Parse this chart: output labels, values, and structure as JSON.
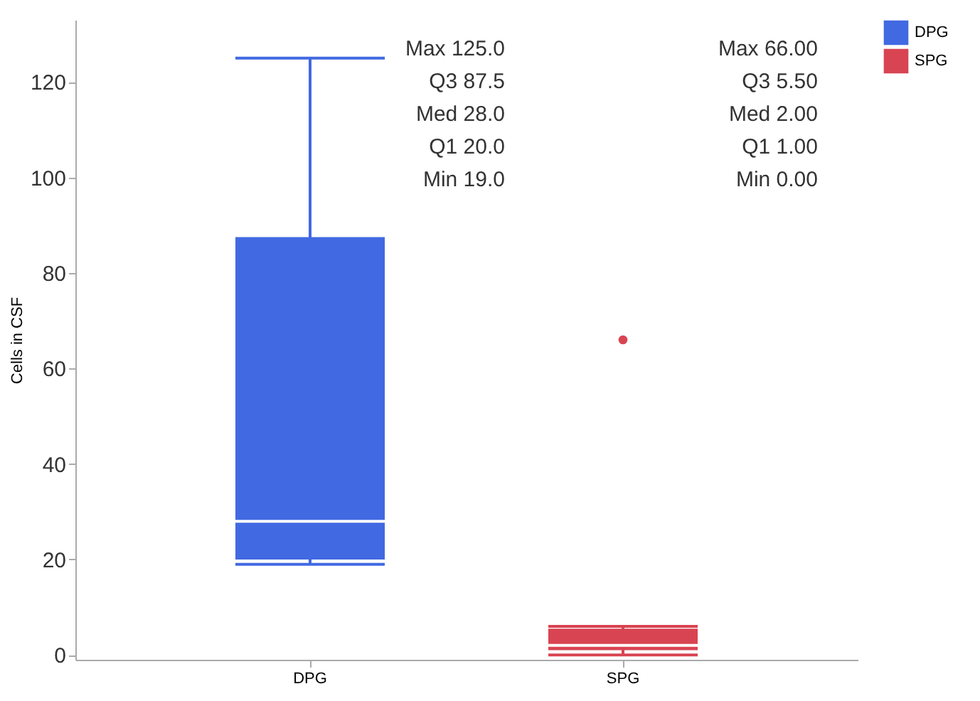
{
  "chart_data": {
    "type": "box",
    "ylabel": "Cells in CSF",
    "categories": [
      "DPG",
      "SPG"
    ],
    "series": [
      {
        "name": "DPG",
        "color": "#4169e1",
        "boxes": [
          {
            "low": 19,
            "q1": 20,
            "median": 28,
            "q3": 87.5,
            "high": 125
          },
          null
        ]
      },
      {
        "name": "SPG",
        "color": "#d94452",
        "boxes": [
          null,
          {
            "low": 0,
            "q1": 1,
            "median": 2,
            "q3": 5.5,
            "high": 6,
            "outliers": [
              66
            ]
          }
        ]
      }
    ],
    "ylim": [
      -1,
      133
    ],
    "yticks": [
      0,
      20,
      40,
      60,
      80,
      100,
      120
    ],
    "grid": false,
    "legend": "top right",
    "annotations": [
      "Max 125.0",
      "Q3  87.5",
      "Med 28.0",
      "Q1  20.0",
      "Min 19.0",
      "Max 66.00",
      "Q3  5.50",
      "Med 2.00",
      "Q1  1.00",
      "Min 0.00"
    ]
  }
}
